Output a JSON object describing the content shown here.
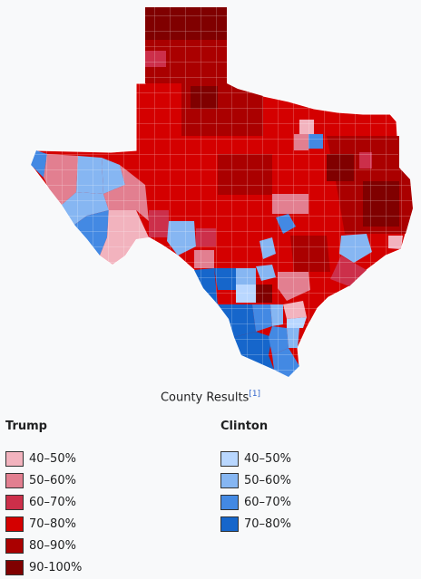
{
  "caption": {
    "text": "County Results",
    "ref": "[1]"
  },
  "legend": {
    "trump": {
      "heading": "Trump",
      "items": [
        {
          "label": "40–50%",
          "color": "#f2b3be"
        },
        {
          "label": "50–60%",
          "color": "#e27f90"
        },
        {
          "label": "60–70%",
          "color": "#cc2f4a"
        },
        {
          "label": "70–80%",
          "color": "#d40000"
        },
        {
          "label": "80–90%",
          "color": "#aa0000"
        },
        {
          "label": "90-100%",
          "color": "#800000"
        }
      ]
    },
    "clinton": {
      "heading": "Clinton",
      "items": [
        {
          "label": "40–50%",
          "color": "#b9d7ff"
        },
        {
          "label": "50–60%",
          "color": "#86b6f2"
        },
        {
          "label": "60–70%",
          "color": "#4389e3"
        },
        {
          "label": "70–80%",
          "color": "#1666cb"
        }
      ]
    }
  }
}
